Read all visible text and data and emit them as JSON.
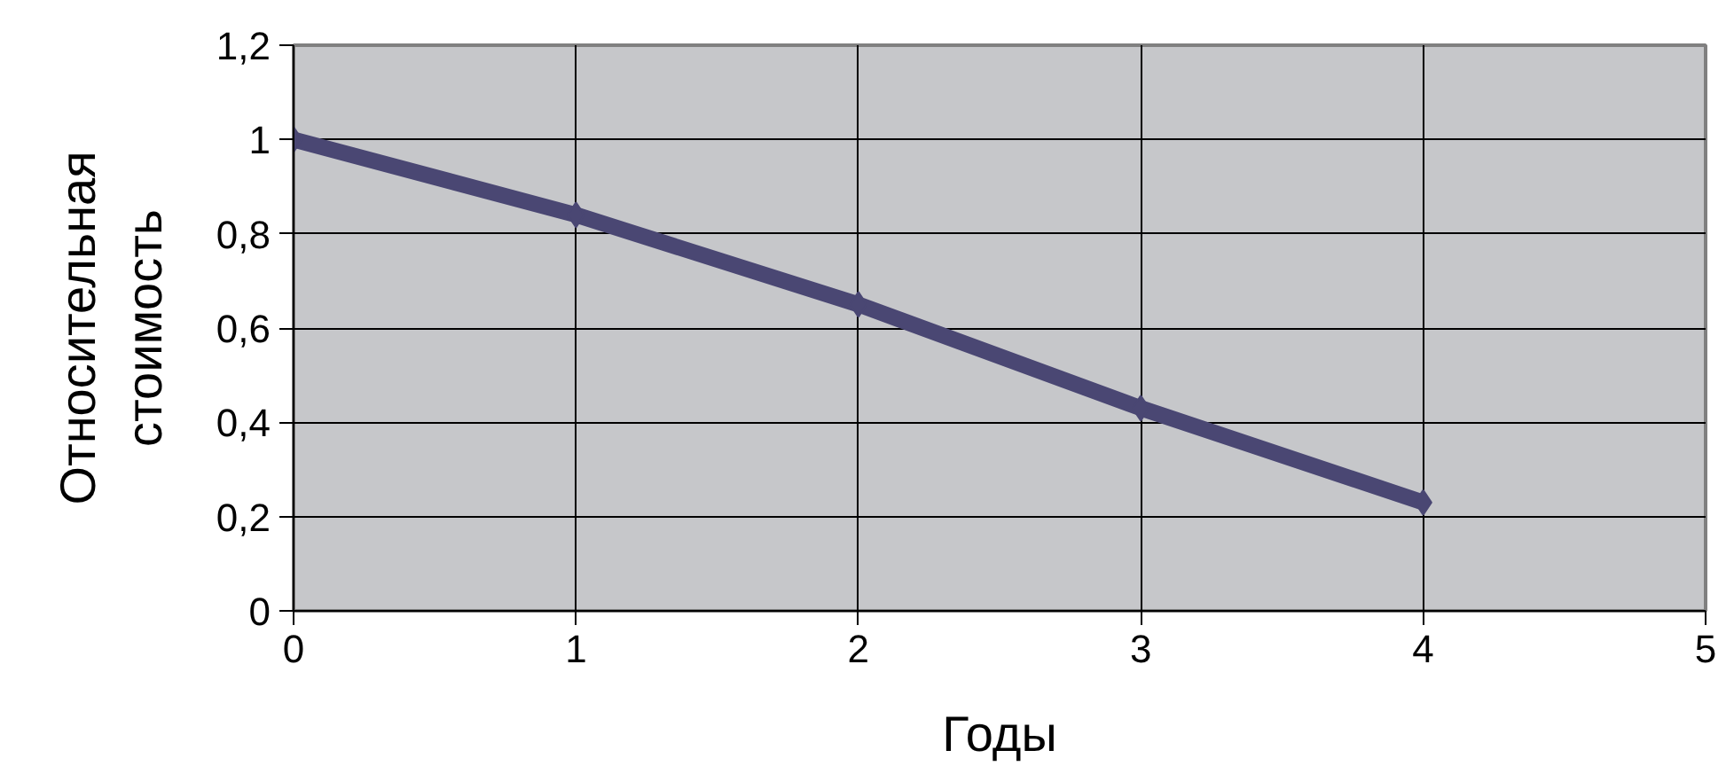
{
  "chart_data": {
    "type": "line",
    "xlabel": "Годы",
    "ylabel": "Относительная\nстоимость",
    "x": [
      0,
      1,
      2,
      3,
      4
    ],
    "series": [
      {
        "color": "#4a4773",
        "values": [
          1.0,
          0.84,
          0.65,
          0.43,
          0.23
        ]
      }
    ],
    "xlim": [
      0,
      5
    ],
    "xticks": [
      0,
      1,
      2,
      3,
      4,
      5
    ],
    "ylim": [
      0,
      1.2
    ],
    "yticks": [
      {
        "value": 0,
        "label": "0"
      },
      {
        "value": 0.2,
        "label": "0,2"
      },
      {
        "value": 0.4,
        "label": "0,4"
      },
      {
        "value": 0.6,
        "label": "0,6"
      },
      {
        "value": 0.8,
        "label": "0,8"
      },
      {
        "value": 1,
        "label": "1"
      },
      {
        "value": 1.2,
        "label": "1,2"
      }
    ],
    "grid": true,
    "marker": "diamond",
    "line_style": "solid"
  }
}
